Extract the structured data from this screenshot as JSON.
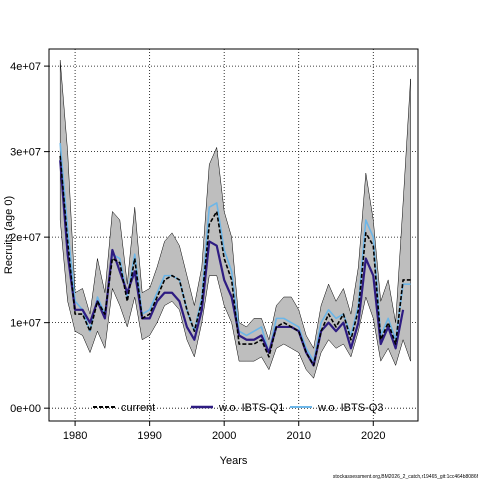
{
  "chart_data": {
    "type": "line",
    "title": "",
    "xlabel": "Years",
    "ylabel": "Recruits (age 0)",
    "xlim": [
      1976.5,
      2026
    ],
    "ylim": [
      -1500000,
      42000000
    ],
    "xticks": [
      1980,
      1990,
      2000,
      2010,
      2020
    ],
    "xtick_labels": [
      "1980",
      "1990",
      "2000",
      "2010",
      "2020"
    ],
    "yticks": [
      0,
      10000000,
      20000000,
      30000000,
      40000000
    ],
    "ytick_labels": [
      "0e+00",
      "1e+07",
      "2e+07",
      "3e+07",
      "4e+07"
    ],
    "grid": true,
    "legend_position": "bottom",
    "x": [
      1978,
      1979,
      1980,
      1981,
      1982,
      1983,
      1984,
      1985,
      1986,
      1987,
      1988,
      1989,
      1990,
      1991,
      1992,
      1993,
      1994,
      1995,
      1996,
      1997,
      1998,
      1999,
      2000,
      2001,
      2002,
      2003,
      2004,
      2005,
      2006,
      2007,
      2008,
      2009,
      2010,
      2011,
      2012,
      2013,
      2014,
      2015,
      2016,
      2017,
      2018,
      2019,
      2020,
      2021,
      2022,
      2023,
      2024,
      2025
    ],
    "band": {
      "color": "#bebebe",
      "upper": [
        40700000,
        30000000,
        13500000,
        14000000,
        11000000,
        17500000,
        13500000,
        23000000,
        22000000,
        14500000,
        23500000,
        13500000,
        14000000,
        16500000,
        19500000,
        20500000,
        19000000,
        15500000,
        12000000,
        16500000,
        28500000,
        30500000,
        23000000,
        20000000,
        10000000,
        9500000,
        10500000,
        10500000,
        8000000,
        12000000,
        13000000,
        13000000,
        11500000,
        8500000,
        7000000,
        12000000,
        14500000,
        12500000,
        14000000,
        11000000,
        16500000,
        27500000,
        22000000,
        12500000,
        15000000,
        10000000,
        24000000,
        38500000
      ],
      "lower": [
        22000000,
        12500000,
        9000000,
        8500000,
        6500000,
        9000000,
        7000000,
        14000000,
        12000000,
        9500000,
        13000000,
        8000000,
        8500000,
        10000000,
        12000000,
        12500000,
        11500000,
        8000000,
        6000000,
        10000000,
        15500000,
        15500000,
        12000000,
        10000000,
        5500000,
        5500000,
        5500000,
        6000000,
        4500000,
        7000000,
        7500000,
        7000000,
        6500000,
        4500000,
        3500000,
        6500000,
        8000000,
        7000000,
        7500000,
        6000000,
        9000000,
        13000000,
        10500000,
        5500000,
        7000000,
        5000000,
        8000000,
        5500000
      ]
    },
    "series": [
      {
        "name": "current",
        "color": "#000000",
        "values": [
          29500000,
          19500000,
          11000000,
          11000000,
          9000000,
          12500000,
          11000000,
          17500000,
          17000000,
          12500000,
          17500000,
          10500000,
          11000000,
          13000000,
          15000000,
          15500000,
          15000000,
          11500000,
          9000000,
          12500000,
          21500000,
          23000000,
          17500000,
          15000000,
          7500000,
          7500000,
          7500000,
          8000000,
          6000000,
          9500000,
          10000000,
          9500000,
          9000000,
          6500000,
          5000000,
          9000000,
          11000000,
          9500000,
          11000000,
          8000000,
          11500000,
          20500000,
          19000000,
          8000000,
          10000000,
          7500000,
          15000000,
          15000000
        ]
      },
      {
        "name": "w.o. IBTS-Q1",
        "color": "#2e1c82",
        "values": [
          29000000,
          18000000,
          11500000,
          11500000,
          10000000,
          12500000,
          10500000,
          18500000,
          16000000,
          13500000,
          16000000,
          10500000,
          10500000,
          12500000,
          13500000,
          13500000,
          12500000,
          9500000,
          8000000,
          11500000,
          19500000,
          19000000,
          15000000,
          13000000,
          8500000,
          8000000,
          8000000,
          8500000,
          6500000,
          9500000,
          9500000,
          9500000,
          9000000,
          6500000,
          5000000,
          9000000,
          10000000,
          9000000,
          10000000,
          7000000,
          10000000,
          17500000,
          15500000,
          7500000,
          9500000,
          7000000,
          11500000,
          null
        ]
      },
      {
        "name": "w.o. IBTS-Q3",
        "color": "#6cb6e8",
        "values": [
          31000000,
          21000000,
          12500000,
          11500000,
          9000000,
          13000000,
          11000000,
          18000000,
          17500000,
          13000000,
          18000000,
          11000000,
          11500000,
          13500000,
          15500000,
          15500000,
          15000000,
          11500000,
          9000000,
          13000000,
          23500000,
          24000000,
          18500000,
          16000000,
          9000000,
          8500000,
          9000000,
          9500000,
          6500000,
          10500000,
          10500000,
          10000000,
          9500000,
          7000000,
          5500000,
          10000000,
          11500000,
          10500000,
          11000000,
          8500000,
          12000000,
          22000000,
          20000000,
          8500000,
          10500000,
          8000000,
          14500000,
          14500000
        ]
      }
    ]
  },
  "footer": {
    "caption": "stockassessment.org,BM2026_2_catch,r19465_git:1cc464b8086f"
  }
}
